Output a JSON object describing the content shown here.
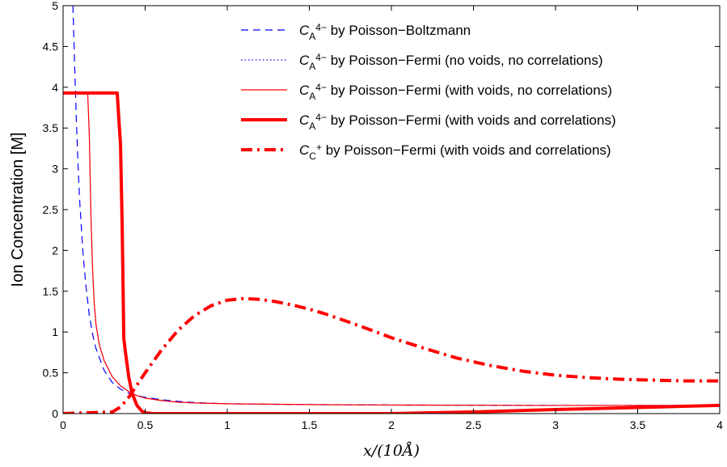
{
  "chart_data": {
    "type": "line",
    "xlabel": "x/(10Å)",
    "ylabel": "Ion Concentration [M]",
    "xlim": [
      0,
      4
    ],
    "ylim": [
      0,
      5
    ],
    "xticks": [
      "0",
      "0.5",
      "1",
      "1.5",
      "2",
      "2.5",
      "3",
      "3.5",
      "4"
    ],
    "yticks": [
      "0",
      "0.5",
      "1",
      "1.5",
      "2",
      "2.5",
      "3",
      "3.5",
      "4",
      "4.5",
      "5"
    ],
    "grid": false,
    "legend_position": "top-right",
    "series": [
      {
        "legend_symbol": "C",
        "legend_sub": "A",
        "legend_sup": "4−",
        "legend_suffix": " by Poisson−Boltzmann",
        "color": "#0000ff",
        "style": "dashed",
        "width": "thin",
        "x": [
          0.06,
          0.07,
          0.08,
          0.09,
          0.1,
          0.12,
          0.14,
          0.16,
          0.18,
          0.2,
          0.25,
          0.3,
          0.35,
          0.4,
          0.45,
          0.5,
          0.6,
          0.7,
          0.8,
          1.0,
          1.2,
          1.5,
          2.0,
          3.0,
          4.0
        ],
        "y": [
          5.0,
          4.3,
          3.65,
          3.1,
          2.65,
          2.0,
          1.55,
          1.2,
          0.97,
          0.8,
          0.53,
          0.38,
          0.3,
          0.25,
          0.22,
          0.2,
          0.17,
          0.15,
          0.135,
          0.12,
          0.115,
          0.11,
          0.105,
          0.1,
          0.1
        ]
      },
      {
        "legend_symbol": "C",
        "legend_sub": "A",
        "legend_sup": "4−",
        "legend_suffix": " by Poisson−Fermi (no voids, no correlations)",
        "color": "#0000ff",
        "style": "dotted",
        "width": "thin",
        "x": [
          0.0,
          0.15,
          0.16,
          0.17,
          0.18,
          0.19,
          0.2,
          0.22,
          0.25,
          0.3,
          0.35,
          0.4,
          0.45,
          0.5,
          0.6,
          0.7,
          0.8,
          1.0,
          1.5,
          2.0,
          3.0,
          4.0
        ],
        "y": [
          3.93,
          3.93,
          3.4,
          2.4,
          1.75,
          1.35,
          1.1,
          0.85,
          0.65,
          0.45,
          0.34,
          0.27,
          0.22,
          0.19,
          0.16,
          0.14,
          0.13,
          0.12,
          0.11,
          0.105,
          0.1,
          0.1
        ]
      },
      {
        "legend_symbol": "C",
        "legend_sub": "A",
        "legend_sup": "4−",
        "legend_suffix": " by Poisson−Fermi (with voids, no correlations)",
        "color": "#ff0000",
        "style": "solid",
        "width": "thin",
        "x": [
          0.0,
          0.15,
          0.16,
          0.17,
          0.18,
          0.19,
          0.2,
          0.22,
          0.25,
          0.3,
          0.35,
          0.4,
          0.45,
          0.5,
          0.6,
          0.7,
          0.8,
          1.0,
          1.5,
          2.0,
          3.0,
          4.0
        ],
        "y": [
          3.93,
          3.93,
          3.4,
          2.4,
          1.75,
          1.35,
          1.1,
          0.85,
          0.65,
          0.45,
          0.34,
          0.27,
          0.22,
          0.19,
          0.16,
          0.14,
          0.13,
          0.12,
          0.11,
          0.105,
          0.1,
          0.1
        ]
      },
      {
        "legend_symbol": "C",
        "legend_sub": "A",
        "legend_sup": "4−",
        "legend_suffix": " by Poisson−Fermi (with voids and correlations)",
        "color": "#ff0000",
        "style": "solid",
        "width": "thick",
        "x": [
          0.0,
          0.33,
          0.34,
          0.35,
          0.36,
          0.37,
          0.38,
          0.4,
          0.42,
          0.45,
          0.48,
          0.5,
          0.55,
          1.0,
          2.0,
          2.5,
          3.0,
          3.3,
          3.6,
          3.8,
          4.0
        ],
        "y": [
          3.93,
          3.93,
          3.6,
          3.3,
          2.3,
          0.92,
          0.75,
          0.45,
          0.25,
          0.1,
          0.03,
          0.01,
          0.0,
          0.0,
          0.0,
          0.02,
          0.05,
          0.065,
          0.08,
          0.09,
          0.1
        ]
      },
      {
        "legend_symbol": "C",
        "legend_sub": "C",
        "legend_sup": "+",
        "legend_suffix": " by Poisson−Fermi (with voids and correlations)",
        "color": "#ff0000",
        "style": "dashdot",
        "width": "thick",
        "x": [
          0.0,
          0.3,
          0.35,
          0.4,
          0.45,
          0.5,
          0.6,
          0.7,
          0.8,
          0.9,
          1.0,
          1.1,
          1.2,
          1.3,
          1.4,
          1.5,
          1.6,
          1.8,
          2.0,
          2.2,
          2.4,
          2.6,
          2.8,
          3.0,
          3.2,
          3.4,
          3.6,
          3.8,
          4.0
        ],
        "y": [
          0.0,
          0.02,
          0.08,
          0.2,
          0.35,
          0.5,
          0.78,
          1.02,
          1.2,
          1.32,
          1.39,
          1.41,
          1.4,
          1.37,
          1.33,
          1.28,
          1.22,
          1.08,
          0.93,
          0.8,
          0.68,
          0.59,
          0.52,
          0.47,
          0.44,
          0.42,
          0.41,
          0.4,
          0.4
        ]
      }
    ]
  }
}
